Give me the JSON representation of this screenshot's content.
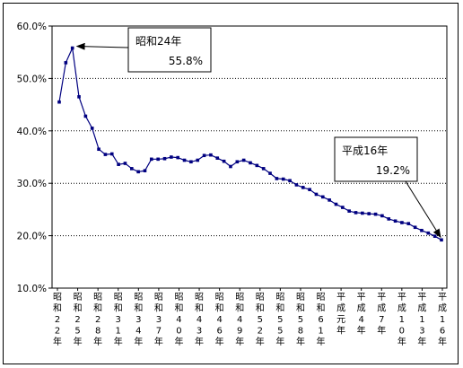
{
  "chart_data": {
    "type": "line",
    "y_ticks": [
      "60.0%",
      "50.0%",
      "40.0%",
      "30.0%",
      "20.0%",
      "10.0%"
    ],
    "ylim": [
      10,
      60
    ],
    "grid": "dotted-horizontal",
    "x_labels": [
      [
        "昭",
        "和",
        "2",
        "2",
        "年"
      ],
      [
        "昭",
        "和",
        "2",
        "5",
        "年"
      ],
      [
        "昭",
        "和",
        "2",
        "8",
        "年"
      ],
      [
        "昭",
        "和",
        "3",
        "1",
        "年"
      ],
      [
        "昭",
        "和",
        "3",
        "4",
        "年"
      ],
      [
        "昭",
        "和",
        "3",
        "7",
        "年"
      ],
      [
        "昭",
        "和",
        "4",
        "0",
        "年"
      ],
      [
        "昭",
        "和",
        "4",
        "3",
        "年"
      ],
      [
        "昭",
        "和",
        "4",
        "6",
        "年"
      ],
      [
        "昭",
        "和",
        "4",
        "9",
        "年"
      ],
      [
        "昭",
        "和",
        "5",
        "2",
        "年"
      ],
      [
        "昭",
        "和",
        "5",
        "5",
        "年"
      ],
      [
        "昭",
        "和",
        "5",
        "8",
        "年"
      ],
      [
        "昭",
        "和",
        "6",
        "1",
        "年"
      ],
      [
        "平",
        "成",
        "元",
        "年"
      ],
      [
        "平",
        "成",
        "4",
        "年"
      ],
      [
        "平",
        "成",
        "7",
        "年"
      ],
      [
        "平",
        "成",
        "1",
        "0",
        "年"
      ],
      [
        "平",
        "成",
        "1",
        "3",
        "年"
      ],
      [
        "平",
        "成",
        "1",
        "6",
        "年"
      ]
    ],
    "values": [
      45.5,
      53.0,
      55.8,
      46.5,
      42.8,
      40.5,
      36.5,
      35.5,
      35.6,
      33.6,
      33.8,
      32.8,
      32.2,
      32.4,
      34.6,
      34.6,
      34.7,
      35.0,
      34.9,
      34.4,
      34.1,
      34.4,
      35.3,
      35.4,
      34.8,
      34.2,
      33.2,
      34.1,
      34.4,
      33.9,
      33.4,
      32.8,
      31.9,
      30.9,
      30.8,
      30.5,
      29.7,
      29.2,
      28.8,
      27.9,
      27.4,
      26.8,
      26.0,
      25.4,
      24.7,
      24.4,
      24.3,
      24.2,
      24.1,
      23.8,
      23.2,
      22.8,
      22.5,
      22.3,
      21.6,
      21.0,
      20.5,
      19.9,
      19.2
    ],
    "callouts": [
      {
        "text_line1": "昭和24年",
        "text_line2": "55.8%"
      },
      {
        "text_line1": "平成16年",
        "text_line2": "19.2%"
      }
    ],
    "series_color": "#000080"
  }
}
